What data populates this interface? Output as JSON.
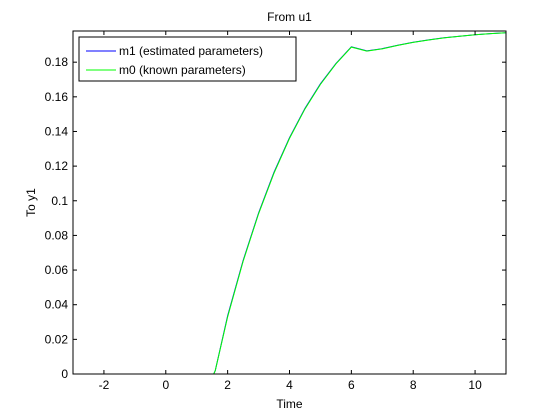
{
  "chart_data": {
    "type": "line",
    "title": "From u1",
    "xlabel": "Time",
    "ylabel": "To y1",
    "xlim": [
      -3,
      11
    ],
    "ylim": [
      0,
      0.198
    ],
    "xticks": [
      -2,
      0,
      2,
      4,
      6,
      8,
      10
    ],
    "xtick_labels": [
      "-2",
      "0",
      "2",
      "4",
      "6",
      "8",
      "10"
    ],
    "yticks": [
      0,
      0.02,
      0.04,
      0.06,
      0.08,
      0.1,
      0.12,
      0.14,
      0.16,
      0.18
    ],
    "ytick_labels": [
      "0",
      "0.02",
      "0.04",
      "0.06",
      "0.08",
      "0.1",
      "0.12",
      "0.14",
      "0.16",
      "0.18"
    ],
    "grid": false,
    "legend_position": "top-left",
    "series": [
      {
        "name": "m1 (estimated parameters)",
        "color": "#0000ff",
        "x": [
          -3,
          1.55,
          1.6,
          2,
          2.5,
          3,
          3.5,
          4,
          4.5,
          5,
          5.5,
          6,
          6.5,
          7,
          7.5,
          8,
          8.5,
          9,
          9.5,
          10,
          10.5,
          11
        ],
        "y": [
          0,
          0,
          0.002,
          0.0336,
          0.0655,
          0.0929,
          0.1165,
          0.1364,
          0.1533,
          0.1675,
          0.1792,
          0.1889,
          0.1865,
          0.1878,
          0.1898,
          0.1915,
          0.1929,
          0.1941,
          0.195,
          0.1958,
          0.1965,
          0.197
        ]
      },
      {
        "name": "m0 (known parameters)",
        "color": "#00ff00",
        "x": [
          -3,
          1.55,
          1.6,
          2,
          2.5,
          3,
          3.5,
          4,
          4.5,
          5,
          5.5,
          6,
          6.5,
          7,
          7.5,
          8,
          8.5,
          9,
          9.5,
          10,
          10.5,
          11
        ],
        "y": [
          0,
          0,
          0.002,
          0.033,
          0.065,
          0.0925,
          0.116,
          0.136,
          0.153,
          0.1672,
          0.179,
          0.1887,
          0.1864,
          0.1877,
          0.1897,
          0.1914,
          0.1928,
          0.194,
          0.195,
          0.1958,
          0.1965,
          0.197
        ]
      }
    ]
  },
  "colors": {
    "background": "#ffffff",
    "axes": "#000000",
    "series1": "#0000ff",
    "series2": "#00ff00"
  }
}
